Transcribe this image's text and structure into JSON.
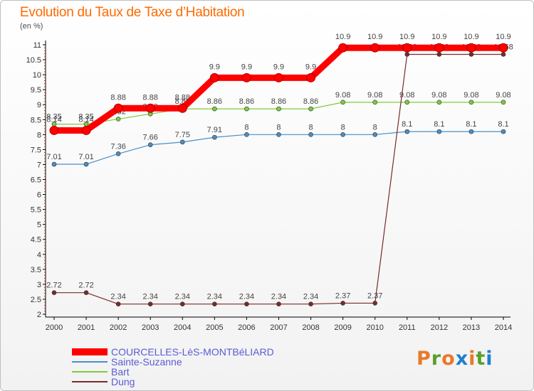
{
  "title": "Evolution du Taux de Taxe d’Habitation",
  "unit_label": "(en %)",
  "logo": {
    "text": "Proxiti",
    "letter_colors": [
      "#e8792b",
      "#5aa02c",
      "#e8792b",
      "#1f7fd0",
      "#e8792b",
      "#5aa02c",
      "#1f7fd0"
    ]
  },
  "chart_data": {
    "type": "line",
    "title": "Evolution du Taux de Taxe d’Habitation",
    "ylabel": "(en %)",
    "xlabel": "",
    "x": [
      "2000",
      "2001",
      "2002",
      "2003",
      "2004",
      "2005",
      "2006",
      "2007",
      "2008",
      "2009",
      "2010",
      "2011",
      "2012",
      "2013",
      "2014"
    ],
    "ylim": [
      2,
      11
    ],
    "y_ticks": [
      "2",
      "2.5",
      "3",
      "3.5",
      "4",
      "4.5",
      "5",
      "5.5",
      "6",
      "6.5",
      "7",
      "7.5",
      "8",
      "8.5",
      "9",
      "9.5",
      "10",
      "10.5",
      "11"
    ],
    "grid": false,
    "legend_position": "bottom-left",
    "series": [
      {
        "name": "COURCELLES-LèS-MONTBéLIARD",
        "color": "#ff0000",
        "thick": true,
        "values": [
          8.14,
          8.14,
          8.88,
          8.88,
          8.88,
          9.9,
          9.9,
          9.9,
          9.9,
          10.9,
          10.9,
          10.9,
          10.9,
          10.9,
          10.9
        ],
        "labels": [
          "8.14",
          "8.14",
          "8.88",
          "8.88",
          "8.88",
          "9.9",
          "9.9",
          "9.9",
          "9.9",
          "10.9",
          "10.9",
          "10.9",
          "10.9",
          "10.9",
          "10.9"
        ]
      },
      {
        "name": "Sainte-Suzanne",
        "color": "#4a8ec6",
        "thick": false,
        "values": [
          7.01,
          7.01,
          7.36,
          7.66,
          7.75,
          7.91,
          8,
          8,
          8,
          8,
          8,
          8.1,
          8.1,
          8.1,
          8.1
        ],
        "labels": [
          "7.01",
          "7.01",
          "7.36",
          "7.66",
          "7.75",
          "7.91",
          "8",
          "8",
          "8",
          "8",
          "8",
          "8.1",
          "8.1",
          "8.1",
          "8.1"
        ]
      },
      {
        "name": "Bart",
        "color": "#7ecb3f",
        "thick": false,
        "values": [
          8.35,
          8.35,
          8.52,
          8.69,
          8.86,
          8.86,
          8.86,
          8.86,
          8.86,
          9.08,
          9.08,
          9.08,
          9.08,
          9.08,
          9.08
        ],
        "labels": [
          "8.35",
          "8.35",
          "8.52",
          "8.69",
          "8.86",
          "8.86",
          "8.86",
          "8.86",
          "8.86",
          "9.08",
          "9.08",
          "9.08",
          "9.08",
          "9.08",
          "9.08"
        ]
      },
      {
        "name": "Dung",
        "color": "#7a2a2a",
        "thick": false,
        "values": [
          2.72,
          2.72,
          2.34,
          2.34,
          2.34,
          2.34,
          2.34,
          2.34,
          2.34,
          2.37,
          2.37,
          10.68,
          10.68,
          10.68,
          10.68
        ],
        "labels": [
          "2.72",
          "2.72",
          "2.34",
          "2.34",
          "2.34",
          "2.34",
          "2.34",
          "2.34",
          "2.34",
          "2.37",
          "2.37",
          "10.68",
          "10.68",
          "10.68",
          "10.68"
        ]
      }
    ]
  }
}
